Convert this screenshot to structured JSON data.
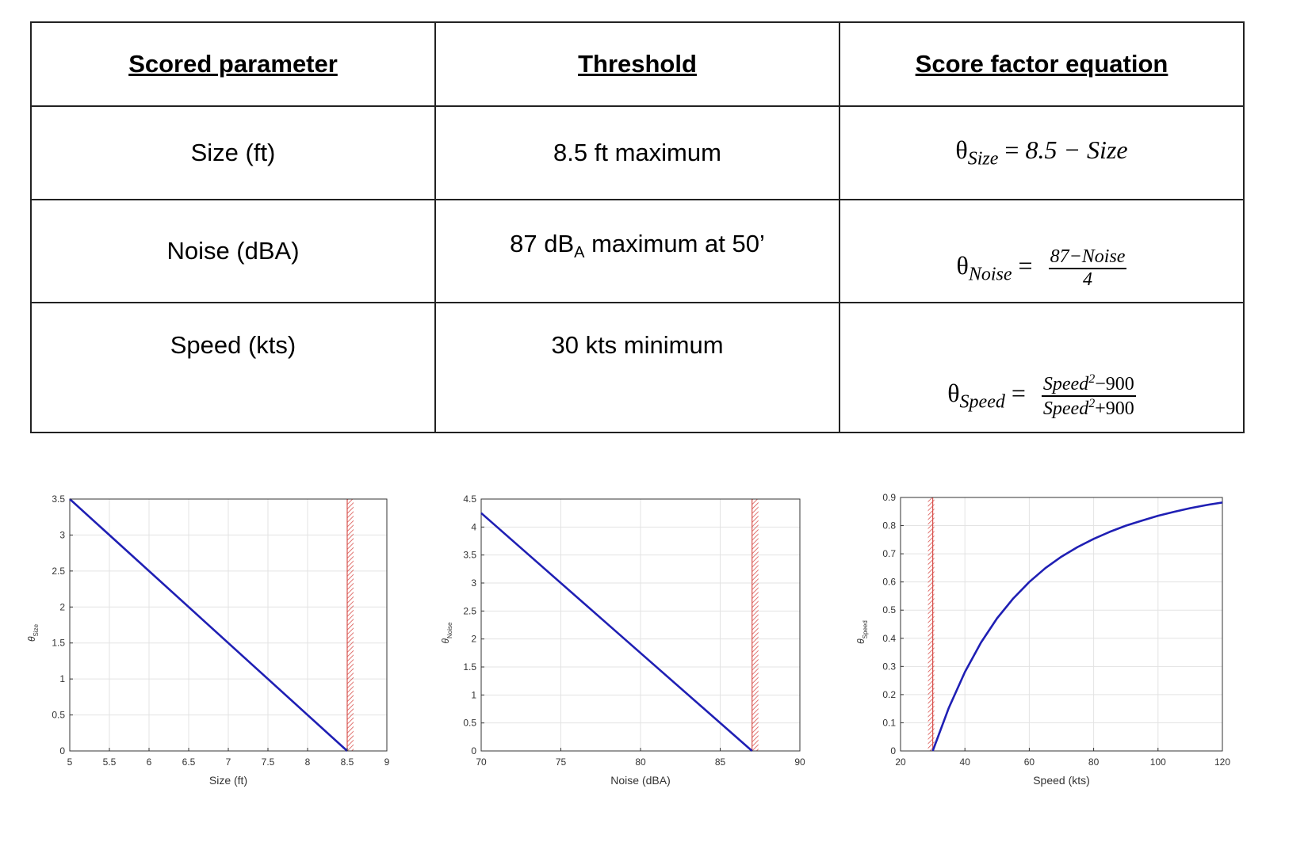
{
  "table": {
    "headers": [
      "Scored parameter",
      "Threshold",
      "Score factor equation"
    ],
    "rows": [
      {
        "parameter": "Size (ft)",
        "threshold": "8.5 ft maximum",
        "eq_symbol": "θ",
        "eq_sub": "Size",
        "eq_op": " = ",
        "eq_rhs": "8.5 − Size"
      },
      {
        "parameter": "Noise (dBA)",
        "threshold_pre": "87 dB",
        "threshold_sub": "A",
        "threshold_post": " maximum at 50’",
        "eq_symbol": "θ",
        "eq_sub": "Noise",
        "eq_op": " = ",
        "eq_num": "87−Noise",
        "eq_den": "4"
      },
      {
        "parameter": "Speed (kts)",
        "threshold": "30 kts minimum",
        "eq_symbol": "θ",
        "eq_sub": "Speed",
        "eq_op": " = ",
        "eq_num_base": "Speed",
        "eq_num_exp": "2",
        "eq_num_tail": "−900",
        "eq_den_base": "Speed",
        "eq_den_exp": "2",
        "eq_den_tail": "+900"
      }
    ]
  },
  "chart_data": [
    {
      "type": "line",
      "xlabel": "Size (ft)",
      "ylabel_symbol": "θ",
      "ylabel_sub": "Size",
      "xlim": [
        5,
        9
      ],
      "ylim": [
        0,
        3.5
      ],
      "xticks": [
        "5",
        "5.5",
        "6",
        "6.5",
        "7",
        "7.5",
        "8",
        "8.5",
        "9"
      ],
      "xtick_values": [
        5,
        5.5,
        6,
        6.5,
        7,
        7.5,
        8,
        8.5,
        9
      ],
      "yticks": [
        "0",
        "0.5",
        "1",
        "1.5",
        "2",
        "2.5",
        "3",
        "3.5"
      ],
      "ytick_values": [
        0,
        0.5,
        1,
        1.5,
        2,
        2.5,
        3,
        3.5
      ],
      "grid": true,
      "series": [
        {
          "x": [
            5,
            8.5
          ],
          "y": [
            3.5,
            0
          ]
        }
      ],
      "threshold_x": 8.5,
      "threshold_side": "right",
      "line_color": "#1f1fb4",
      "threshold_color": "#d9534f"
    },
    {
      "type": "line",
      "xlabel": "Noise (dBA)",
      "ylabel_symbol": "θ",
      "ylabel_sub": "Noise",
      "xlim": [
        70,
        90
      ],
      "ylim": [
        0,
        4.5
      ],
      "xticks": [
        "70",
        "75",
        "80",
        "85",
        "90"
      ],
      "xtick_values": [
        70,
        75,
        80,
        85,
        90
      ],
      "yticks": [
        "0",
        "0.5",
        "1",
        "1.5",
        "2",
        "2.5",
        "3",
        "3.5",
        "4",
        "4.5"
      ],
      "ytick_values": [
        0,
        0.5,
        1,
        1.5,
        2,
        2.5,
        3,
        3.5,
        4,
        4.5
      ],
      "grid": true,
      "series": [
        {
          "x": [
            70,
            87
          ],
          "y": [
            4.25,
            0
          ]
        }
      ],
      "threshold_x": 87,
      "threshold_side": "right",
      "line_color": "#1f1fb4",
      "threshold_color": "#d9534f"
    },
    {
      "type": "line",
      "xlabel": "Speed (kts)",
      "ylabel_symbol": "θ",
      "ylabel_sub": "Speed",
      "xlim": [
        20,
        120
      ],
      "ylim": [
        0,
        0.9
      ],
      "xticks": [
        "20",
        "40",
        "60",
        "80",
        "100",
        "120"
      ],
      "xtick_values": [
        20,
        40,
        60,
        80,
        100,
        120
      ],
      "yticks": [
        "0",
        "0.1",
        "0.2",
        "0.3",
        "0.4",
        "0.5",
        "0.6",
        "0.7",
        "0.8",
        "0.9"
      ],
      "ytick_values": [
        0,
        0.1,
        0.2,
        0.3,
        0.4,
        0.5,
        0.6,
        0.7,
        0.8,
        0.9
      ],
      "grid": true,
      "series": [
        {
          "x": [
            30,
            35,
            40,
            45,
            50,
            55,
            60,
            65,
            70,
            75,
            80,
            85,
            90,
            95,
            100,
            105,
            110,
            115,
            120
          ],
          "y": [
            0,
            0.153,
            0.28,
            0.385,
            0.471,
            0.541,
            0.6,
            0.649,
            0.69,
            0.724,
            0.753,
            0.778,
            0.8,
            0.818,
            0.835,
            0.849,
            0.862,
            0.873,
            0.882
          ]
        }
      ],
      "threshold_x": 30,
      "threshold_side": "left",
      "line_color": "#1f1fb4",
      "threshold_color": "#d9534f"
    }
  ]
}
